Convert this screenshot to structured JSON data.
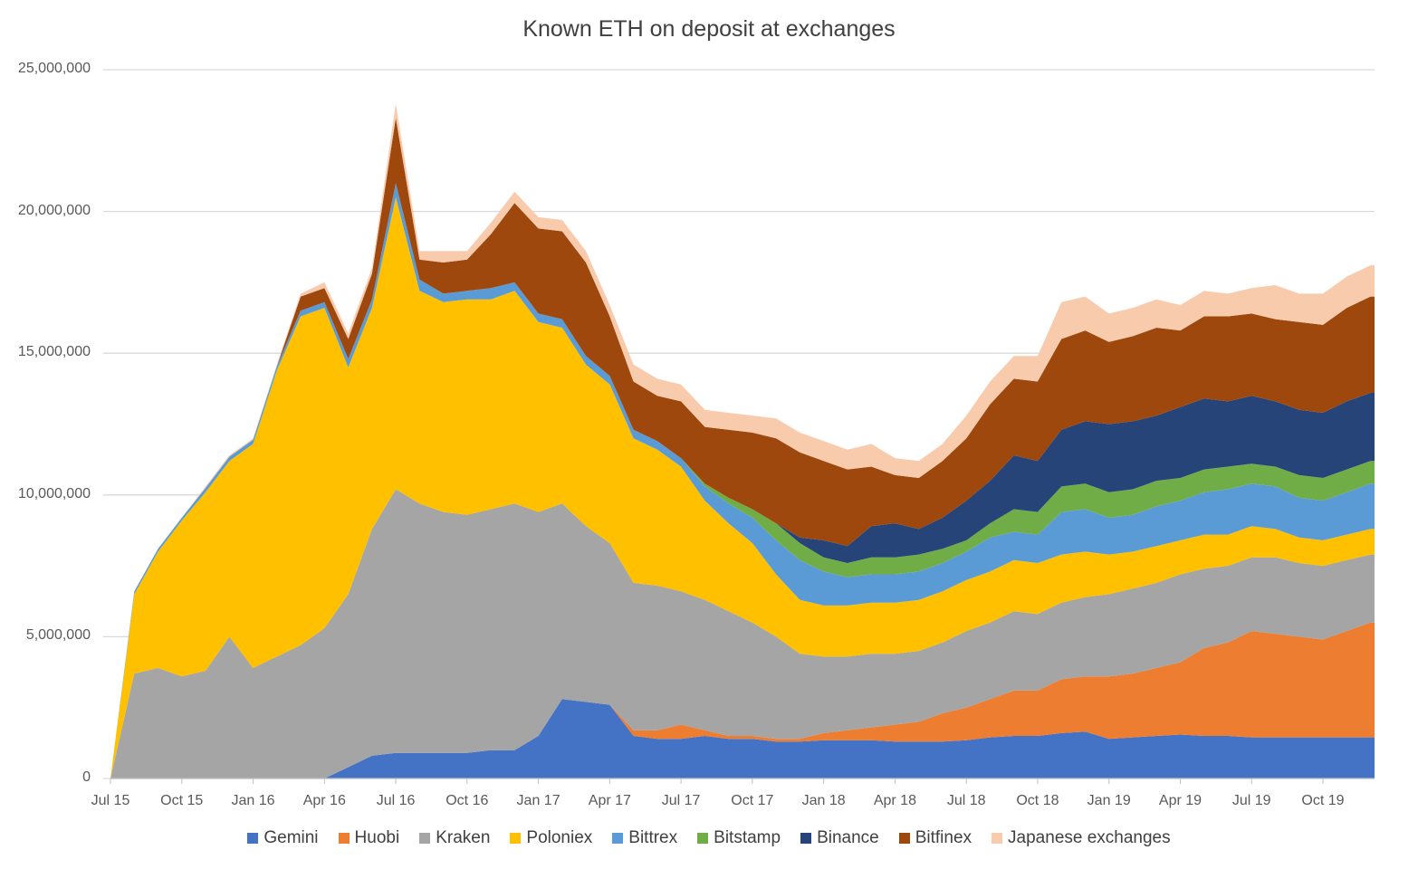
{
  "chart_data": {
    "type": "area",
    "stacked": true,
    "title": "Known ETH on deposit at exchanges",
    "xlabel": "",
    "ylabel": "",
    "value_unit": "millions of ETH",
    "ylim": [
      0,
      25000000
    ],
    "yticks": [
      0,
      5000000,
      10000000,
      15000000,
      20000000,
      25000000
    ],
    "ytick_labels": [
      "0",
      "5,000,000",
      "10,000,000",
      "15,000,000",
      "20,000,000",
      "25,000,000"
    ],
    "xtick_labels": [
      "Jul 15",
      "Oct 15",
      "Jan 16",
      "Apr 16",
      "Jul 16",
      "Oct 16",
      "Jan 17",
      "Apr 17",
      "Jul 17",
      "Oct 17",
      "Jan 18",
      "Apr 18",
      "Jul 18",
      "Oct 18",
      "Jan 19",
      "Apr 19",
      "Jul 19",
      "Oct 19"
    ],
    "x_start": "2015-07",
    "x_step": "1 month",
    "grid": true,
    "legend_position": "bottom",
    "series": [
      {
        "name": "Gemini",
        "color": "#4472C4",
        "values": [
          0,
          0,
          0,
          0,
          0,
          0,
          0,
          0,
          0,
          0,
          0.4,
          0.8,
          0.9,
          0.9,
          0.9,
          0.9,
          1.0,
          1.0,
          1.5,
          2.8,
          2.7,
          2.6,
          1.5,
          1.4,
          1.4,
          1.5,
          1.4,
          1.4,
          1.3,
          1.3,
          1.35,
          1.35,
          1.35,
          1.3,
          1.3,
          1.3,
          1.35,
          1.45,
          1.5,
          1.5,
          1.6,
          1.65,
          1.4,
          1.45,
          1.5,
          1.55,
          1.5,
          1.5,
          1.45,
          1.45,
          1.45,
          1.45,
          1.45,
          1.45
        ]
      },
      {
        "name": "Huobi",
        "color": "#ED7D31",
        "values": [
          0,
          0,
          0,
          0,
          0,
          0,
          0,
          0,
          0,
          0,
          0,
          0,
          0,
          0,
          0,
          0,
          0,
          0,
          0,
          0,
          0,
          0,
          0.2,
          0.3,
          0.5,
          0.2,
          0.1,
          0.1,
          0.1,
          0.1,
          0.25,
          0.35,
          0.45,
          0.6,
          0.7,
          1.0,
          1.15,
          1.35,
          1.6,
          1.6,
          1.9,
          1.95,
          2.2,
          2.25,
          2.4,
          2.55,
          3.1,
          3.3,
          3.75,
          3.65,
          3.55,
          3.45,
          3.75,
          4.05
        ]
      },
      {
        "name": "Kraken",
        "color": "#A5A5A5",
        "values": [
          0,
          3.7,
          3.9,
          3.6,
          3.8,
          5.0,
          3.9,
          4.3,
          4.7,
          5.3,
          6.1,
          8.0,
          9.3,
          8.8,
          8.5,
          8.4,
          8.5,
          8.7,
          7.9,
          6.9,
          6.2,
          5.7,
          5.2,
          5.1,
          4.7,
          4.6,
          4.4,
          4.0,
          3.6,
          3.0,
          2.7,
          2.6,
          2.6,
          2.5,
          2.5,
          2.5,
          2.7,
          2.7,
          2.8,
          2.7,
          2.7,
          2.8,
          2.9,
          3.0,
          3.0,
          3.1,
          2.8,
          2.7,
          2.6,
          2.7,
          2.6,
          2.6,
          2.5,
          2.4
        ]
      },
      {
        "name": "Poloniex",
        "color": "#FFC000",
        "values": [
          0,
          2.8,
          4.1,
          5.5,
          6.3,
          6.2,
          7.9,
          10.1,
          11.6,
          11.3,
          8.0,
          7.8,
          10.3,
          7.5,
          7.4,
          7.6,
          7.4,
          7.5,
          6.7,
          6.2,
          5.7,
          5.6,
          5.1,
          4.8,
          4.4,
          3.5,
          3.1,
          2.8,
          2.2,
          1.9,
          1.8,
          1.8,
          1.8,
          1.8,
          1.8,
          1.8,
          1.8,
          1.8,
          1.8,
          1.8,
          1.7,
          1.6,
          1.4,
          1.3,
          1.3,
          1.2,
          1.2,
          1.1,
          1.1,
          1.0,
          0.9,
          0.9,
          0.9,
          0.9
        ]
      },
      {
        "name": "Bittrex",
        "color": "#5B9BD5",
        "values": [
          0,
          0.1,
          0.1,
          0.1,
          0.15,
          0.15,
          0.15,
          0.15,
          0.2,
          0.2,
          0.3,
          0.3,
          0.5,
          0.4,
          0.3,
          0.3,
          0.4,
          0.3,
          0.3,
          0.3,
          0.3,
          0.3,
          0.3,
          0.3,
          0.3,
          0.5,
          0.7,
          0.9,
          1.2,
          1.4,
          1.2,
          1.0,
          1.0,
          1.0,
          1.0,
          1.0,
          1.0,
          1.2,
          1.0,
          1.0,
          1.5,
          1.5,
          1.3,
          1.3,
          1.4,
          1.4,
          1.5,
          1.6,
          1.5,
          1.5,
          1.4,
          1.4,
          1.5,
          1.6
        ]
      },
      {
        "name": "Bitstamp",
        "color": "#70AD47",
        "values": [
          0,
          0,
          0,
          0,
          0,
          0,
          0,
          0,
          0,
          0,
          0,
          0,
          0,
          0,
          0,
          0,
          0,
          0,
          0,
          0,
          0,
          0,
          0,
          0,
          0,
          0.1,
          0.2,
          0.3,
          0.6,
          0.6,
          0.5,
          0.5,
          0.6,
          0.6,
          0.6,
          0.5,
          0.4,
          0.5,
          0.8,
          0.8,
          0.9,
          0.9,
          0.9,
          0.9,
          0.9,
          0.8,
          0.8,
          0.8,
          0.7,
          0.7,
          0.8,
          0.8,
          0.8,
          0.8
        ]
      },
      {
        "name": "Binance",
        "color": "#264478",
        "values": [
          0,
          0,
          0,
          0,
          0,
          0,
          0,
          0,
          0,
          0,
          0,
          0,
          0,
          0,
          0,
          0,
          0,
          0,
          0,
          0,
          0,
          0,
          0,
          0,
          0,
          0,
          0,
          0,
          0,
          0.2,
          0.6,
          0.6,
          1.1,
          1.2,
          0.9,
          1.1,
          1.4,
          1.5,
          1.9,
          1.8,
          2.0,
          2.2,
          2.4,
          2.4,
          2.3,
          2.5,
          2.5,
          2.3,
          2.4,
          2.3,
          2.3,
          2.3,
          2.4,
          2.4
        ]
      },
      {
        "name": "Bitfinex",
        "color": "#9E480E",
        "values": [
          0,
          0,
          0,
          0,
          0,
          0,
          0,
          0,
          0.5,
          0.5,
          0.7,
          0.9,
          2.3,
          0.7,
          1.1,
          1.1,
          1.9,
          2.8,
          3.0,
          3.1,
          3.3,
          2.1,
          1.7,
          1.6,
          2.0,
          2.0,
          2.4,
          2.7,
          3.0,
          3.0,
          2.8,
          2.7,
          2.1,
          1.7,
          1.8,
          2.0,
          2.2,
          2.7,
          2.7,
          2.8,
          3.2,
          3.2,
          2.9,
          3.0,
          3.1,
          2.7,
          2.9,
          3.0,
          2.9,
          2.9,
          3.1,
          3.1,
          3.3,
          3.4
        ]
      },
      {
        "name": "Japanese exchanges",
        "color": "#F8CBAD",
        "values": [
          0,
          0,
          0,
          0,
          0.05,
          0.05,
          0.05,
          0.05,
          0.1,
          0.2,
          0.2,
          0.2,
          0.5,
          0.3,
          0.4,
          0.3,
          0.4,
          0.4,
          0.4,
          0.4,
          0.4,
          0.4,
          0.6,
          0.6,
          0.6,
          0.6,
          0.6,
          0.6,
          0.7,
          0.7,
          0.7,
          0.7,
          0.8,
          0.6,
          0.6,
          0.6,
          0.8,
          0.8,
          0.8,
          0.9,
          1.3,
          1.2,
          1.0,
          1.0,
          1.0,
          0.9,
          0.9,
          0.8,
          0.9,
          1.2,
          1.0,
          1.1,
          1.1,
          1.1
        ]
      }
    ]
  }
}
